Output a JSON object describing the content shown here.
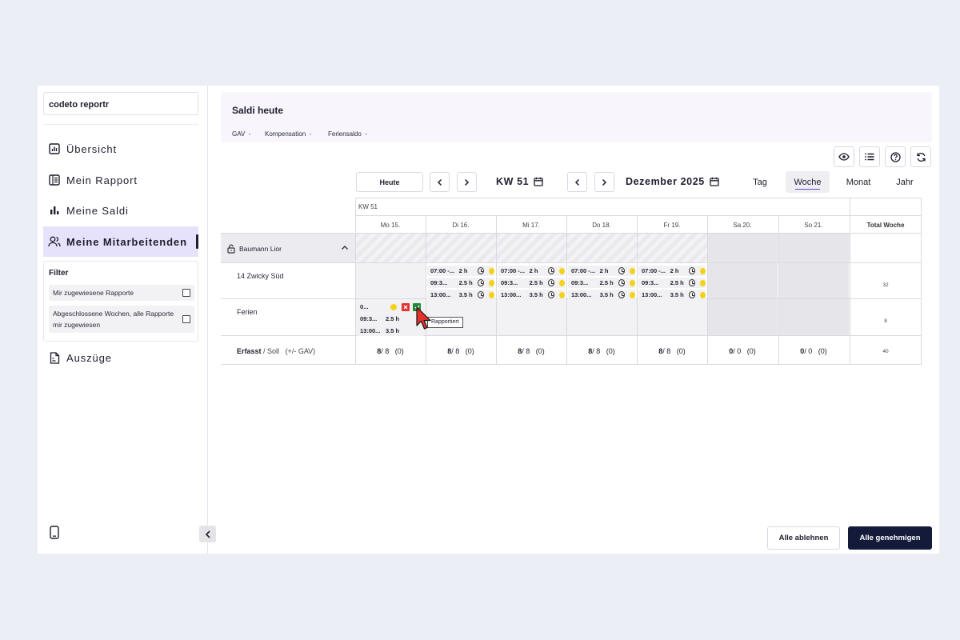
{
  "sidebar": {
    "brand": "codeto reportr",
    "items": [
      {
        "label": "Übersicht"
      },
      {
        "label": "Mein Rapport"
      },
      {
        "label": "Meine Saldi"
      },
      {
        "label": "Meine Mitarbeitenden"
      },
      {
        "label": "Auszüge"
      }
    ],
    "filter": {
      "title": "Filter",
      "options": [
        "Mir zugewiesene Rapporte",
        "Abgeschlossene Wochen, alle Rapporte mir zugewiesen"
      ]
    }
  },
  "saldi": {
    "title": "Saldi heute",
    "items": [
      {
        "label": "GAV",
        "value": "-"
      },
      {
        "label": "Kompensation",
        "value": "-"
      },
      {
        "label": "Feriensaldo",
        "value": "-"
      }
    ]
  },
  "nav": {
    "today": "Heute",
    "week": "KW 51",
    "month": "Dezember 2025",
    "views": [
      "Tag",
      "Woche",
      "Monat",
      "Jahr"
    ],
    "active_view": "Woche"
  },
  "grid": {
    "kw": "KW 51",
    "days": [
      "Mo 15.",
      "Di 16.",
      "Mi 17.",
      "Do 18.",
      "Fr 19.",
      "Sa 20.",
      "So 21."
    ],
    "total_header": "Total Woche",
    "employee": "Baumann Lior",
    "rows": [
      {
        "label": "14 Zwicky Süd",
        "total": "32"
      },
      {
        "label": "Ferien",
        "total": "8"
      }
    ],
    "entries": [
      {
        "time": "07:00 -...",
        "duration": "2 h"
      },
      {
        "time": "09:3...",
        "duration": "2.5 h"
      },
      {
        "time": "13:00...",
        "duration": "3.5 h"
      }
    ],
    "ferien_entries": [
      {
        "time": "0...",
        "duration": ""
      },
      {
        "time": "09:3...",
        "duration": "2.5 h"
      },
      {
        "time": "13:00...",
        "duration": "3.5 h"
      }
    ],
    "summary_label": "Erfasst",
    "summary_sub": "/ Soll",
    "summary_gav": "(+/- GAV)",
    "summary": [
      {
        "ist": "8",
        "soll": "/ 8",
        "gav": "(0)"
      },
      {
        "ist": "8",
        "soll": "/ 8",
        "gav": "(0)"
      },
      {
        "ist": "8",
        "soll": "/ 8",
        "gav": "(0)"
      },
      {
        "ist": "8",
        "soll": "/ 8",
        "gav": "(0)"
      },
      {
        "ist": "8",
        "soll": "/ 8",
        "gav": "(0)"
      },
      {
        "ist": "0",
        "soll": "/ 0",
        "gav": "(0)"
      },
      {
        "ist": "0",
        "soll": "/ 0",
        "gav": "(0)"
      }
    ],
    "summary_total": "40"
  },
  "tooltip": "Rapportiert",
  "footer": {
    "reject": "Alle ablehnen",
    "approve": "Alle genehmigen"
  },
  "colors": {
    "accent": "#5b4bc4",
    "active_nav": "#e7e2fb",
    "primary_btn": "#141a3a",
    "pending_dot": "#f4d21b",
    "reject_red": "#e5322d",
    "approve_green": "#1e8a3a"
  }
}
